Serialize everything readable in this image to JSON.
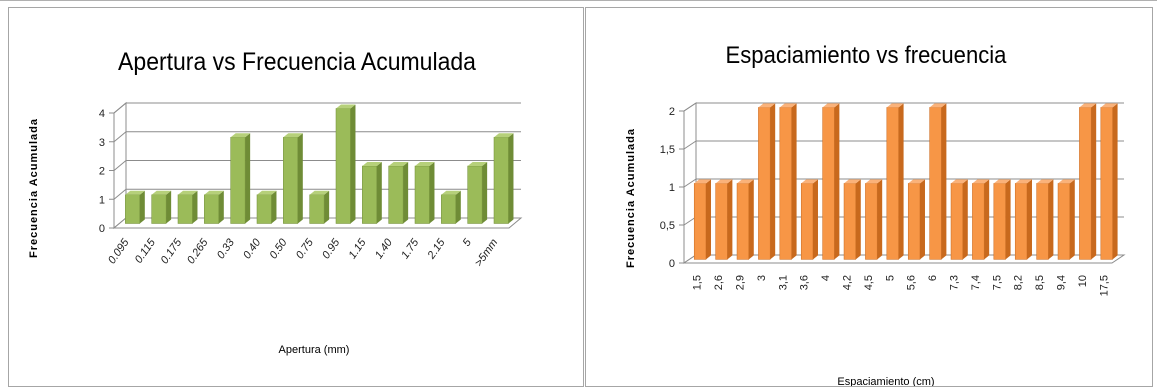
{
  "chart_data": [
    {
      "type": "bar",
      "title": "Apertura vs Frecuencia Acumulada",
      "xlabel": "Apertura  (mm)",
      "ylabel": "Frecuencia Acumulada",
      "categories": [
        "0.095",
        "0.115",
        "0.175",
        "0.265",
        "0.33",
        "0.40",
        "0.50",
        "0.75",
        "0.95",
        "1.15",
        "1.40",
        "1.75",
        "2.15",
        "5",
        ">5mm"
      ],
      "values": [
        1,
        1,
        1,
        1,
        3,
        1,
        3,
        1,
        4,
        2,
        2,
        2,
        1,
        2,
        3
      ],
      "yticks": [
        "0",
        "1",
        "2",
        "3",
        "4"
      ],
      "ylim": [
        0,
        4
      ],
      "grid": true,
      "color": "#9bbb59",
      "colorDark": "#6f8c36",
      "colorLight": "#b6d07a"
    },
    {
      "type": "bar",
      "title": "Espaciamiento vs frecuencia",
      "xlabel": "Espaciamiento (cm)",
      "ylabel": "Frecuencia Acumulada",
      "categories": [
        "1,5",
        "2,6",
        "2,9",
        "3",
        "3,1",
        "3,6",
        "4",
        "4,2",
        "4,5",
        "5",
        "5,6",
        "6",
        "7,3",
        "7,4",
        "7,5",
        "8,2",
        "8,5",
        "9,4",
        "10",
        "17,5"
      ],
      "values": [
        1,
        1,
        1,
        2,
        2,
        1,
        2,
        1,
        1,
        2,
        1,
        2,
        1,
        1,
        1,
        1,
        1,
        1,
        2,
        2
      ],
      "yticks": [
        "0",
        "0,5",
        "1",
        "1,5",
        "2"
      ],
      "ylim": [
        0,
        2
      ],
      "grid": true,
      "color": "#f79646",
      "colorDark": "#c8691d",
      "colorLight": "#fab27a"
    }
  ]
}
